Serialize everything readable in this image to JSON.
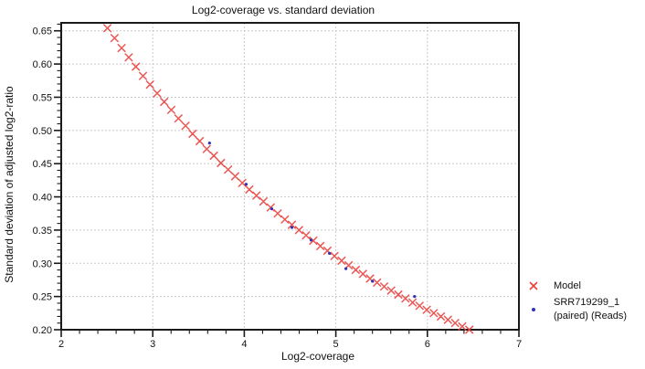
{
  "chart_data": {
    "type": "scatter",
    "title": "Log2-coverage vs. standard deviation",
    "xlabel": "Log2-coverage",
    "ylabel": "Standard deviation of adjusted log2-ratio",
    "xlim": [
      2,
      7
    ],
    "ylim": [
      0.2,
      0.662
    ],
    "x_ticks": [
      2,
      3,
      4,
      5,
      6,
      7
    ],
    "x_tick_labels": [
      "2",
      "3",
      "4",
      "5",
      "6",
      "7"
    ],
    "x_minor_step": 0.2,
    "y_ticks": [
      0.2,
      0.25,
      0.3,
      0.35,
      0.4,
      0.45,
      0.5,
      0.55,
      0.6,
      0.65
    ],
    "y_tick_labels": [
      "0.20",
      "0.25",
      "0.30",
      "0.35",
      "0.40",
      "0.45",
      "0.50",
      "0.55",
      "0.60",
      "0.65"
    ],
    "y_minor_step": 0.01,
    "grid": {
      "show": true,
      "style": "dashed",
      "color": "#cbcbcb"
    },
    "axis_color": "#1a1a1a",
    "legend": {
      "position": "right",
      "items": [
        {
          "label_lines": [
            "Model"
          ],
          "marker": "x",
          "color": "#e8403c"
        },
        {
          "label_lines": [
            "SRR719299_1",
            "(paired) (Reads)"
          ],
          "marker": "dot",
          "color": "#3232b4"
        }
      ]
    },
    "series": [
      {
        "name": "Model",
        "marker": "x",
        "color": "#e8403c",
        "points": [
          [
            2.505,
            0.654
          ],
          [
            2.583,
            0.639
          ],
          [
            2.66,
            0.624
          ],
          [
            2.738,
            0.61
          ],
          [
            2.815,
            0.596
          ],
          [
            2.893,
            0.582
          ],
          [
            2.97,
            0.569
          ],
          [
            3.048,
            0.556
          ],
          [
            3.125,
            0.543
          ],
          [
            3.203,
            0.531
          ],
          [
            3.28,
            0.518
          ],
          [
            3.358,
            0.507
          ],
          [
            3.435,
            0.495
          ],
          [
            3.513,
            0.484
          ],
          [
            3.59,
            0.472
          ],
          [
            3.668,
            0.462
          ],
          [
            3.745,
            0.451
          ],
          [
            3.823,
            0.441
          ],
          [
            3.9,
            0.431
          ],
          [
            3.978,
            0.421
          ],
          [
            4.055,
            0.411
          ],
          [
            4.133,
            0.402
          ],
          [
            4.21,
            0.393
          ],
          [
            4.288,
            0.384
          ],
          [
            4.365,
            0.375
          ],
          [
            4.443,
            0.366
          ],
          [
            4.52,
            0.358
          ],
          [
            4.598,
            0.35
          ],
          [
            4.675,
            0.342
          ],
          [
            4.753,
            0.334
          ],
          [
            4.83,
            0.326
          ],
          [
            4.908,
            0.319
          ],
          [
            4.985,
            0.311
          ],
          [
            5.063,
            0.304
          ],
          [
            5.14,
            0.297
          ],
          [
            5.218,
            0.29
          ],
          [
            5.295,
            0.284
          ],
          [
            5.373,
            0.277
          ],
          [
            5.45,
            0.271
          ],
          [
            5.528,
            0.265
          ],
          [
            5.605,
            0.259
          ],
          [
            5.683,
            0.253
          ],
          [
            5.76,
            0.247
          ],
          [
            5.838,
            0.241
          ],
          [
            5.915,
            0.236
          ],
          [
            5.993,
            0.23
          ],
          [
            6.07,
            0.225
          ],
          [
            6.148,
            0.22
          ],
          [
            6.225,
            0.215
          ],
          [
            6.303,
            0.21
          ],
          [
            6.38,
            0.205
          ],
          [
            6.458,
            0.2
          ]
        ]
      },
      {
        "name": "SRR719299_1 (paired) (Reads)",
        "marker": "dot",
        "color": "#3232b4",
        "points": [
          [
            3.62,
            0.481
          ],
          [
            4.02,
            0.419
          ],
          [
            4.3,
            0.382
          ],
          [
            4.52,
            0.354
          ],
          [
            4.73,
            0.335
          ],
          [
            4.93,
            0.315
          ],
          [
            5.11,
            0.292
          ],
          [
            5.4,
            0.273
          ],
          [
            5.86,
            0.25
          ]
        ]
      }
    ]
  }
}
